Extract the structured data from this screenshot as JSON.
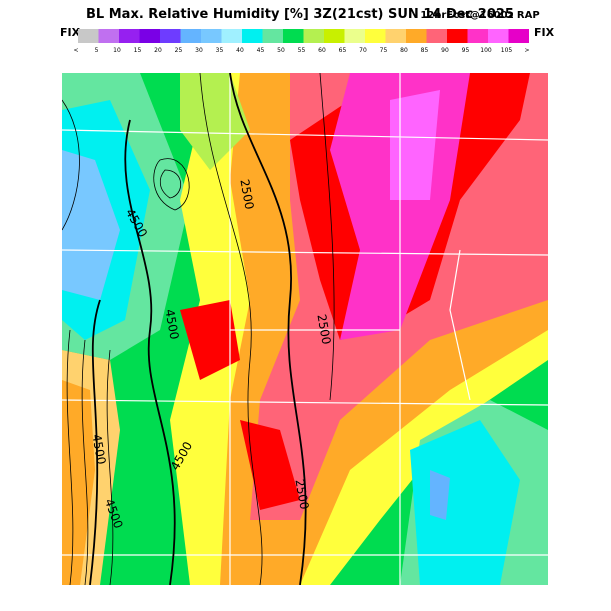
{
  "header": {
    "title": "BL Max. Relative Humidity [%] 3Z(21cst) SUN 14 Dec 2025",
    "subtitle": "12hrFcst@1600z RAP",
    "fix_left": "FIX",
    "fix_right": "FIX"
  },
  "legend": {
    "labels": [
      "<",
      "5",
      "10",
      "15",
      "20",
      "25",
      "30",
      "35",
      "40",
      "45",
      "50",
      "55",
      "60",
      "65",
      "70",
      "75",
      "80",
      "85",
      "90",
      "95",
      "100",
      "105",
      ">"
    ],
    "colors": [
      "#c8c8c8",
      "#c070f0",
      "#9620f0",
      "#7a00e6",
      "#6e3cff",
      "#64b4ff",
      "#78c8ff",
      "#a0f0ff",
      "#00f0f0",
      "#64e6a0",
      "#00dc50",
      "#b4f050",
      "#c8f000",
      "#ebff8c",
      "#ffff3c",
      "#ffd26e",
      "#ffaa28",
      "#ff6478",
      "#ff0000",
      "#ff32c8",
      "#ff64ff",
      "#e600c8"
    ]
  },
  "contour_labels": [
    "2500",
    "4500",
    "4500",
    "2500",
    "4500",
    "2500",
    "4500",
    "4500"
  ]
}
